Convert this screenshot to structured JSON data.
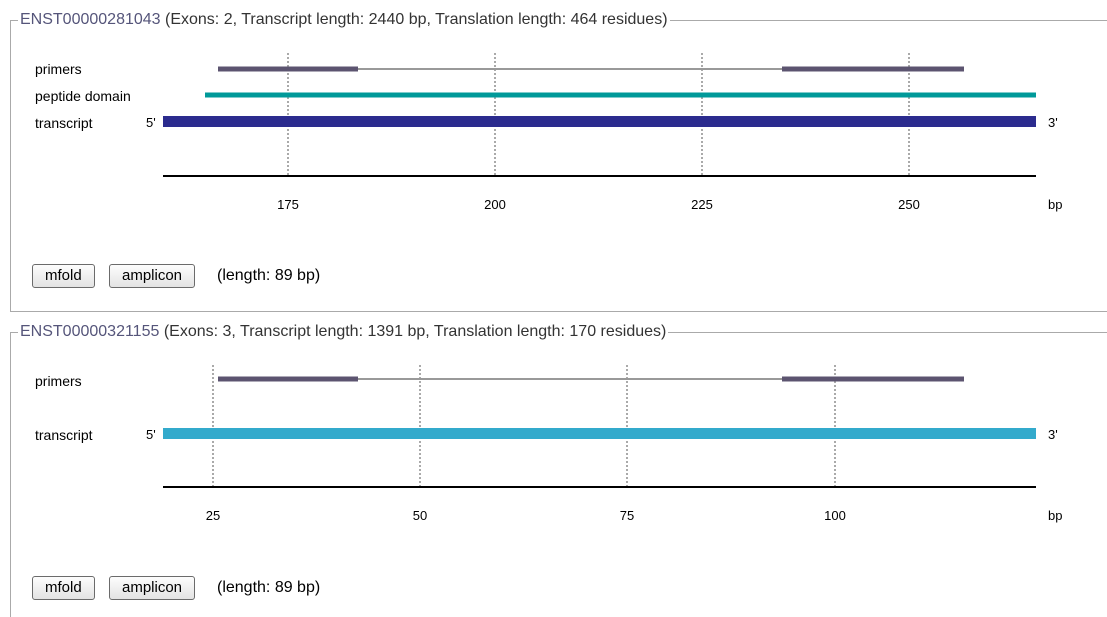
{
  "transcripts": [
    {
      "id": "ENST00000281043",
      "info": " (Exons: 2, Transcript length: 2440 bp, Translation length: 464 residues)",
      "rows": {
        "primers": "primers",
        "peptide_domain": "peptide domain",
        "transcript": "transcript"
      },
      "five_prime": "5'",
      "three_prime": "3'",
      "axis_ticks": [
        "175",
        "200",
        "225",
        "250"
      ],
      "axis_unit": "bp",
      "buttons": {
        "mfold": "mfold",
        "amplicon": "amplicon"
      },
      "length_text": "(length: 89 bp)",
      "colors": {
        "primer": "#5c5470",
        "domain": "#009999",
        "transcript": "#2b2b8e",
        "link": "#999999"
      }
    },
    {
      "id": "ENST00000321155",
      "info": " (Exons: 3, Transcript length: 1391 bp, Translation length: 170 residues)",
      "rows": {
        "primers": "primers",
        "transcript": "transcript"
      },
      "five_prime": "5'",
      "three_prime": "3'",
      "axis_ticks": [
        "25",
        "50",
        "75",
        "100"
      ],
      "axis_unit": "bp",
      "buttons": {
        "mfold": "mfold",
        "amplicon": "amplicon"
      },
      "length_text": "(length: 89 bp)",
      "colors": {
        "primer": "#5c5470",
        "transcript": "#33aacc",
        "link": "#999999"
      }
    }
  ]
}
